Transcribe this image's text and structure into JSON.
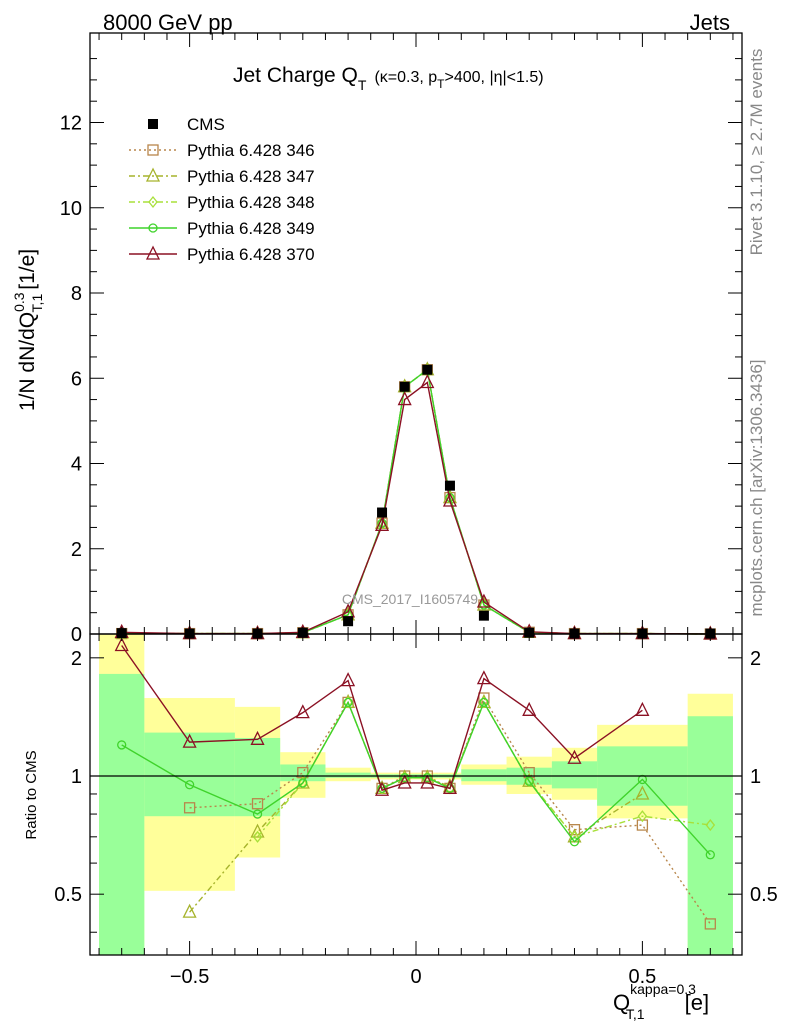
{
  "header": {
    "left": "8000 GeV pp",
    "right": "Jets"
  },
  "side_labels": {
    "rivet": "Rivet 3.1.10, ≥ 2.7M events",
    "mcplots": "mcplots.cern.ch [arXiv:1306.3436]"
  },
  "watermark": "CMS_2017_I1605749",
  "colors": {
    "cms": "#000000",
    "p346": "#b8864b",
    "p347": "#a6b32c",
    "p348": "#a8e03a",
    "p349": "#3fd32b",
    "p370": "#8b1124",
    "band_yellow": "#ffff9a",
    "band_green": "#99ff99"
  },
  "chart_data": [
    {
      "type": "line",
      "title_main": "Jet Charge Q",
      "title_sub": "T",
      "title_detail": "(κ=0.3, p",
      "title_detail_sub": "T",
      "title_detail_end": ">400, |η|<1.5)",
      "ylabel": "1/N dN/dQ",
      "ylabel_sup": "0.3",
      "ylabel_sub": "T,1",
      "ylabel_unit": "[1/e]",
      "xlim": [
        -0.72,
        0.72
      ],
      "ylim": [
        0,
        14.1
      ],
      "yticks": [
        0,
        2,
        4,
        6,
        8,
        10,
        12
      ],
      "legend_position": "top-left",
      "x": [
        -0.65,
        -0.5,
        -0.35,
        -0.25,
        -0.15,
        -0.075,
        -0.025,
        0.025,
        0.075,
        0.15,
        0.25,
        0.35,
        0.5,
        0.65
      ],
      "series": [
        {
          "name": "CMS",
          "values": [
            0.02,
            0.01,
            0.01,
            0.03,
            0.3,
            2.85,
            5.8,
            6.2,
            3.48,
            0.43,
            0.03,
            0.01,
            0.01,
            0.01
          ]
        },
        {
          "name": "Pythia 6.428 346",
          "values": [
            0.01,
            0.01,
            0.01,
            0.03,
            0.45,
            2.6,
            5.8,
            6.2,
            3.2,
            0.68,
            0.04,
            0.01,
            0.01,
            0.0
          ]
        },
        {
          "name": "Pythia 6.428 347",
          "values": [
            0.02,
            0.01,
            0.01,
            0.03,
            0.45,
            2.6,
            5.8,
            6.2,
            3.2,
            0.68,
            0.04,
            0.01,
            0.01,
            0.0
          ]
        },
        {
          "name": "Pythia 6.428 348",
          "values": [
            0.01,
            0.01,
            0.01,
            0.03,
            0.45,
            2.6,
            5.8,
            6.2,
            3.2,
            0.68,
            0.04,
            0.01,
            0.01,
            0.0
          ]
        },
        {
          "name": "Pythia 6.428 349",
          "values": [
            0.01,
            0.01,
            0.01,
            0.03,
            0.45,
            2.6,
            5.8,
            6.2,
            3.2,
            0.68,
            0.04,
            0.01,
            0.01,
            0.0
          ]
        },
        {
          "name": "Pythia 6.428 370",
          "values": [
            0.04,
            0.01,
            0.01,
            0.04,
            0.52,
            2.55,
            5.5,
            5.9,
            3.12,
            0.75,
            0.05,
            0.01,
            0.01,
            0.0
          ]
        }
      ]
    },
    {
      "type": "line",
      "ylabel": "Ratio to CMS",
      "xlabel": "Q",
      "xlabel_sup": "kappa=0.3",
      "xlabel_sub": "T,1",
      "xlabel_unit": "[e]",
      "xlim": [
        -0.72,
        0.72
      ],
      "ylim": [
        0.35,
        2.3
      ],
      "yticks": [
        0.5,
        1,
        2
      ],
      "xticks": [
        -0.5,
        0,
        0.5
      ],
      "xtick_labels": [
        "−0.5",
        "0",
        "0.5"
      ],
      "ytick_labels": [
        "0.5",
        "1",
        "2"
      ],
      "x": [
        -0.65,
        -0.5,
        -0.35,
        -0.25,
        -0.15,
        -0.075,
        -0.025,
        0.025,
        0.075,
        0.15,
        0.25,
        0.35,
        0.5,
        0.65
      ],
      "bins": [
        -0.7,
        -0.6,
        -0.4,
        -0.3,
        -0.2,
        -0.1,
        -0.05,
        0,
        0.05,
        0.1,
        0.2,
        0.3,
        0.4,
        0.6,
        0.7
      ],
      "band_yellow": [
        [
          0.3,
          2.3
        ],
        [
          0.51,
          1.58
        ],
        [
          0.62,
          1.5
        ],
        [
          0.88,
          1.15
        ],
        [
          0.97,
          1.05
        ],
        [
          0.98,
          1.02
        ],
        [
          0.98,
          1.02
        ],
        [
          0.98,
          1.02
        ],
        [
          0.98,
          1.02
        ],
        [
          0.95,
          1.07
        ],
        [
          0.9,
          1.12
        ],
        [
          0.87,
          1.18
        ],
        [
          0.78,
          1.35
        ],
        [
          0.3,
          1.62
        ]
      ],
      "band_green": [
        [
          0.3,
          1.82
        ],
        [
          0.79,
          1.29
        ],
        [
          0.79,
          1.25
        ],
        [
          0.97,
          1.07
        ],
        [
          0.99,
          1.02
        ],
        [
          0.99,
          1.01
        ],
        [
          0.99,
          1.01
        ],
        [
          0.99,
          1.01
        ],
        [
          0.99,
          1.01
        ],
        [
          0.97,
          1.04
        ],
        [
          0.95,
          1.05
        ],
        [
          0.93,
          1.09
        ],
        [
          0.84,
          1.19
        ],
        [
          0.3,
          1.42
        ]
      ],
      "series": [
        {
          "name": "Pythia 6.428 346",
          "values": [
            null,
            0.83,
            0.85,
            1.02,
            1.54,
            0.93,
            1.0,
            1.0,
            0.93,
            1.58,
            1.02,
            0.73,
            0.75,
            0.42
          ]
        },
        {
          "name": "Pythia 6.428 347",
          "values": [
            null,
            0.45,
            0.72,
            0.96,
            1.54,
            0.93,
            0.99,
            0.99,
            0.94,
            1.54,
            0.97,
            0.7,
            0.9,
            null
          ]
        },
        {
          "name": "Pythia 6.428 348",
          "values": [
            null,
            null,
            0.7,
            0.96,
            1.54,
            0.93,
            0.99,
            0.99,
            0.93,
            1.54,
            0.97,
            0.7,
            0.79,
            0.75
          ]
        },
        {
          "name": "Pythia 6.428 349",
          "values": [
            1.2,
            0.95,
            0.8,
            0.96,
            1.54,
            0.93,
            0.99,
            0.99,
            0.93,
            1.54,
            0.97,
            0.68,
            0.98,
            0.63
          ]
        },
        {
          "name": "Pythia 6.428 370",
          "values": [
            2.15,
            1.22,
            1.24,
            1.45,
            1.75,
            0.92,
            0.96,
            0.96,
            0.93,
            1.77,
            1.47,
            1.11,
            1.47,
            null
          ]
        }
      ]
    }
  ]
}
